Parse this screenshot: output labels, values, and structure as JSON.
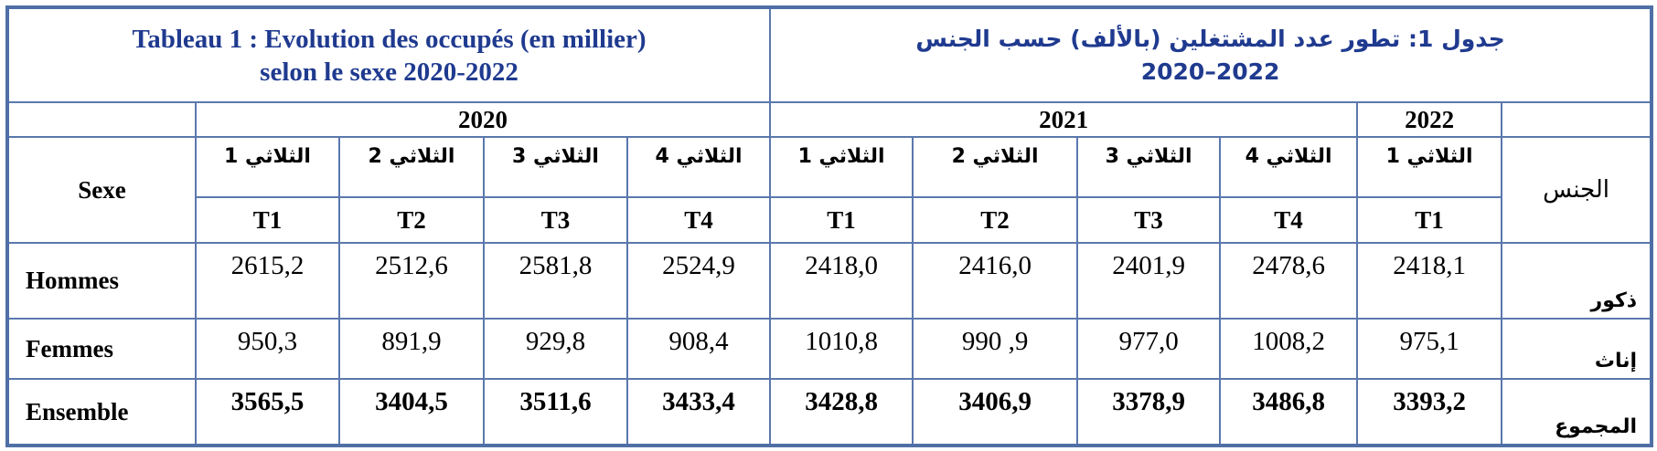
{
  "header": {
    "title_fr": [
      "Tableau 1 : Evolution des occupés (en millier)",
      "selon le sexe 2020-2022"
    ],
    "title_ar": [
      "جدول 1: تطور عدد المشتغلين (بالألف) حسب الجنس",
      "2022–2020"
    ]
  },
  "table": {
    "sex_fr": "Sexe",
    "sex_ar": "الجنس",
    "years": [
      {
        "label": "2020",
        "span": 4
      },
      {
        "label": "2021",
        "span": 4
      },
      {
        "label": "2022",
        "span": 1
      }
    ],
    "quarters_ar": [
      "الثلاثي 1",
      "الثلاثي 2",
      "الثلاثي 3",
      "الثلاثي 4",
      "الثلاثي 1",
      "الثلاثي 2",
      "الثلاثي 3",
      "الثلاثي 4",
      "الثلاثي 1"
    ],
    "quarters": [
      "T1",
      "T2",
      "T3",
      "T4",
      "T1",
      "T2",
      "T3",
      "T4",
      "T1"
    ],
    "rows": [
      {
        "label": "Hommes",
        "label_ar": "ذكور",
        "values": [
          "2615,2",
          "2512,6",
          "2581,8",
          "2524,9",
          "2418,0",
          "2416,0",
          "2401,9",
          "2478,6",
          "2418,1"
        ]
      },
      {
        "label": "Femmes",
        "label_ar": "إناث",
        "values": [
          "950,3",
          "891,9",
          "929,8",
          "908,4",
          "1010,8",
          "990 ,9",
          "977,0",
          "1008,2",
          "975,1"
        ]
      },
      {
        "label": "Ensemble",
        "label_ar": "المجموع",
        "values": [
          "3565,5",
          "3404,5",
          "3511,6",
          "3433,4",
          "3428,8",
          "3406,9",
          "3378,9",
          "3486,8",
          "3393,2"
        ]
      }
    ]
  }
}
